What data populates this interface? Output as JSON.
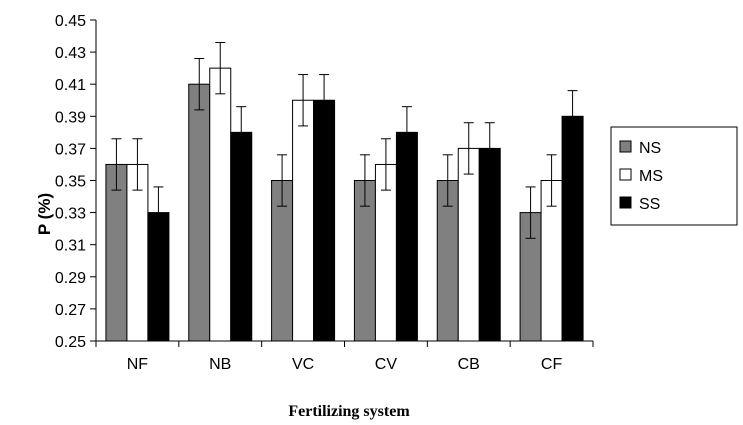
{
  "chart_data": {
    "type": "bar",
    "title": "",
    "xlabel": "Fertilizing system",
    "ylabel": "P (%)",
    "ylim": [
      0.25,
      0.45
    ],
    "yticks": [
      "0.25",
      "0.27",
      "0.29",
      "0.31",
      "0.33",
      "0.35",
      "0.37",
      "0.39",
      "0.41",
      "0.43",
      "0.45"
    ],
    "categories": [
      "NF",
      "NB",
      "VC",
      "CV",
      "CB",
      "CF"
    ],
    "series": [
      {
        "name": "NS",
        "color": "#808080",
        "values": [
          0.36,
          0.41,
          0.35,
          0.35,
          0.35,
          0.33
        ],
        "error": [
          0.016,
          0.016,
          0.016,
          0.016,
          0.016,
          0.016
        ]
      },
      {
        "name": "MS",
        "color": "#ffffff",
        "values": [
          0.36,
          0.42,
          0.4,
          0.36,
          0.37,
          0.35
        ],
        "error": [
          0.016,
          0.016,
          0.016,
          0.016,
          0.016,
          0.016
        ]
      },
      {
        "name": "SS",
        "color": "#000000",
        "values": [
          0.33,
          0.38,
          0.4,
          0.38,
          0.37,
          0.39
        ],
        "error": [
          0.016,
          0.016,
          0.016,
          0.016,
          0.016,
          0.016
        ]
      }
    ],
    "grid": false,
    "legend": "right"
  }
}
